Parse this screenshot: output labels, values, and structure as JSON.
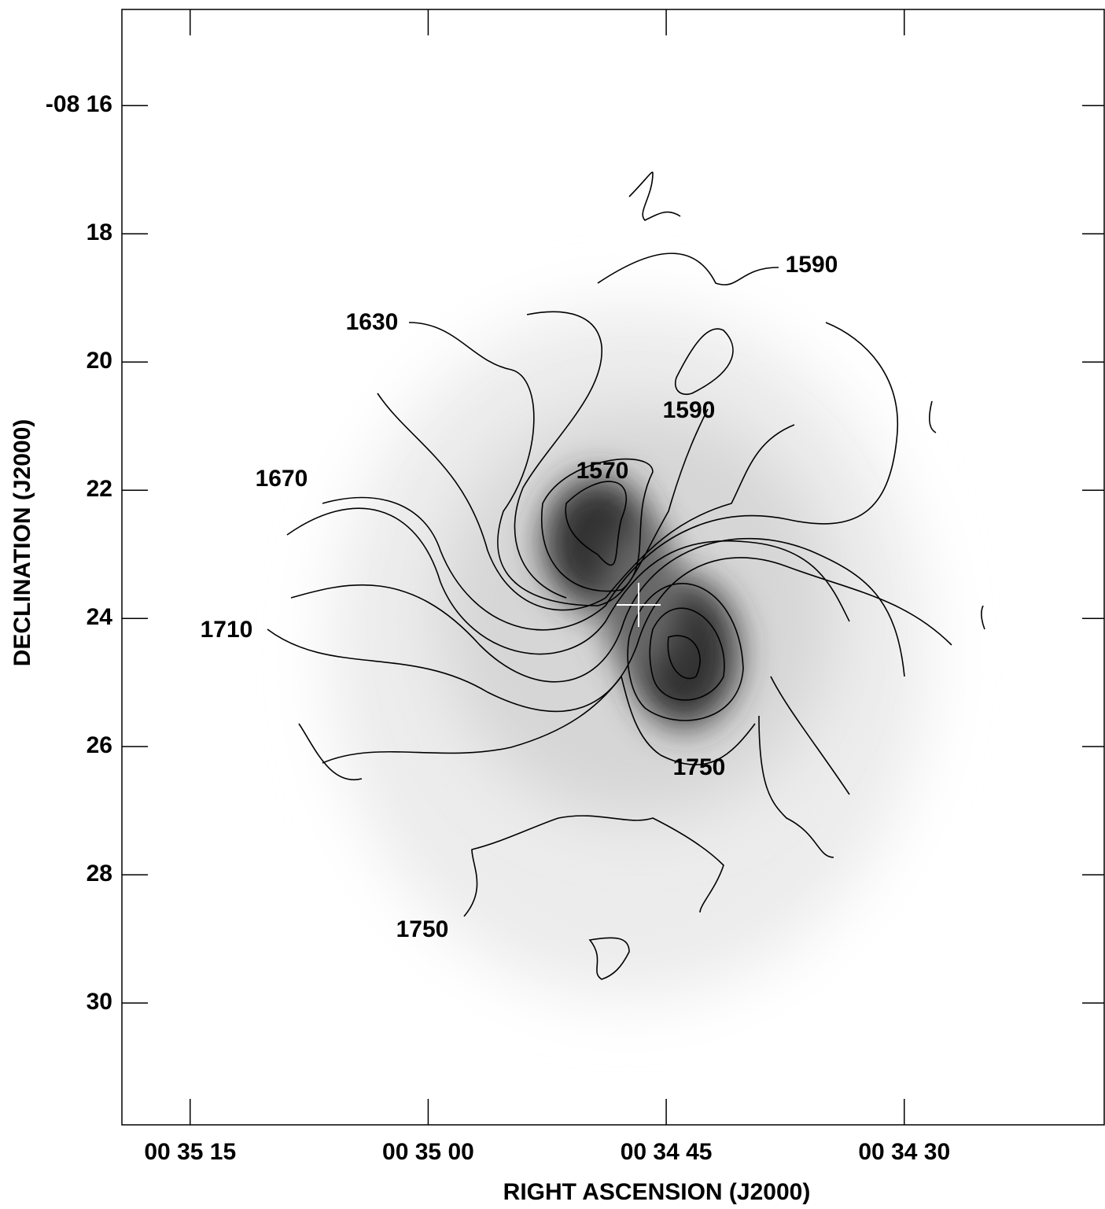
{
  "chart_data": {
    "type": "contour-map",
    "xlabel": "RIGHT ASCENSION (J2000)",
    "ylabel": "DECLINATION (J2000)",
    "xlim": [
      2119.3,
      2057.4
    ],
    "xticks": [
      {
        "value": 2115,
        "label": "00 35 15"
      },
      {
        "value": 2100,
        "label": "00 35 00"
      },
      {
        "value": 2085,
        "label": "00 34 45"
      },
      {
        "value": 2070,
        "label": "00 34 30"
      }
    ],
    "ylim": [
      14.5,
      31.9
    ],
    "yticks": [
      {
        "value": 16,
        "label": "-08 16"
      },
      18,
      20,
      22,
      24,
      26,
      28,
      30
    ],
    "contour_labels": [
      "1590",
      "1630",
      "1590",
      "1570",
      "1670",
      "1710",
      "1750",
      "1750"
    ]
  }
}
